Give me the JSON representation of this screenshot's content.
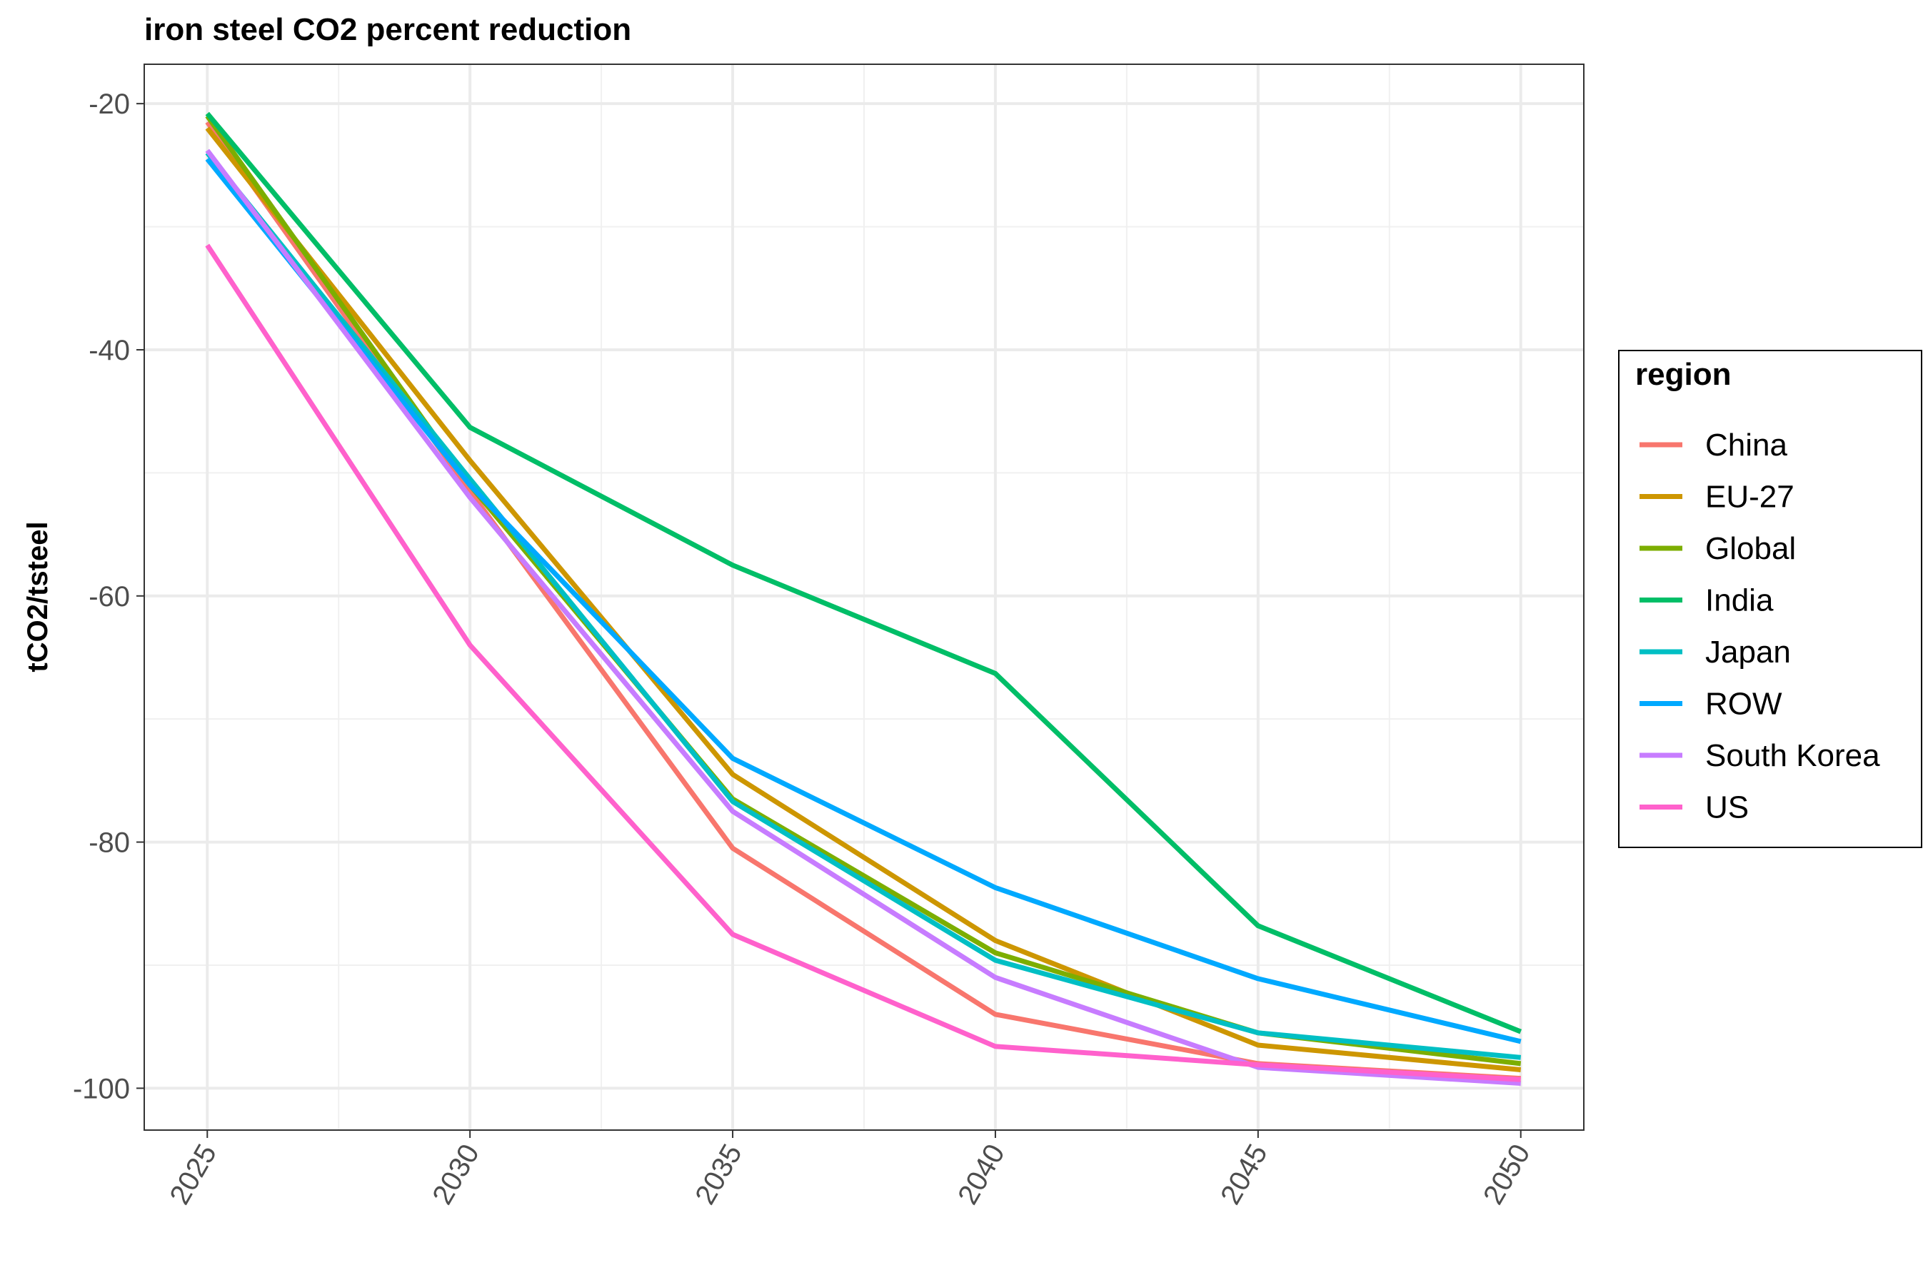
{
  "chart_data": {
    "type": "line",
    "title": "iron steel CO2 percent reduction",
    "xlabel": "",
    "ylabel": "tCO2/tsteel",
    "x": [
      2025,
      2030,
      2035,
      2040,
      2045,
      2050
    ],
    "xlim": [
      2023.8,
      2051.2
    ],
    "ylim": [
      -103.4,
      -16.8
    ],
    "y_major_ticks": [
      -20,
      -40,
      -60,
      -80,
      -100
    ],
    "y_minor_ticks": [
      -30,
      -50,
      -70,
      -90
    ],
    "x_minor_ticks": [
      2027.5,
      2032.5,
      2037.5,
      2042.5,
      2047.5
    ],
    "grid": true,
    "legend": {
      "title": "region",
      "position": "right"
    },
    "series": [
      {
        "name": "China",
        "color": "#F8766D",
        "values": [
          -21.5,
          -51.5,
          -80.5,
          -94.0,
          -98.0,
          -99.2
        ]
      },
      {
        "name": "EU-27",
        "color": "#CD9600",
        "values": [
          -22.0,
          -49.0,
          -74.5,
          -88.0,
          -96.5,
          -98.5
        ]
      },
      {
        "name": "Global",
        "color": "#7CAE00",
        "values": [
          -21.0,
          -51.0,
          -76.5,
          -89.0,
          -95.5,
          -98.0
        ]
      },
      {
        "name": "India",
        "color": "#00BE67",
        "values": [
          -20.8,
          -46.3,
          -57.5,
          -66.3,
          -86.8,
          -95.4
        ]
      },
      {
        "name": "Japan",
        "color": "#00BFC4",
        "values": [
          -24.0,
          -50.5,
          -76.7,
          -89.6,
          -95.5,
          -97.5
        ]
      },
      {
        "name": "ROW",
        "color": "#00A9FF",
        "values": [
          -24.5,
          -51.0,
          -73.2,
          -83.7,
          -91.1,
          -96.2
        ]
      },
      {
        "name": "South Korea",
        "color": "#C77CFF",
        "values": [
          -23.8,
          -52.0,
          -77.5,
          -91.0,
          -98.3,
          -99.6
        ]
      },
      {
        "name": "US",
        "color": "#FF61CC",
        "values": [
          -31.5,
          -64.0,
          -87.5,
          -96.6,
          -98.1,
          -99.3
        ]
      }
    ]
  }
}
